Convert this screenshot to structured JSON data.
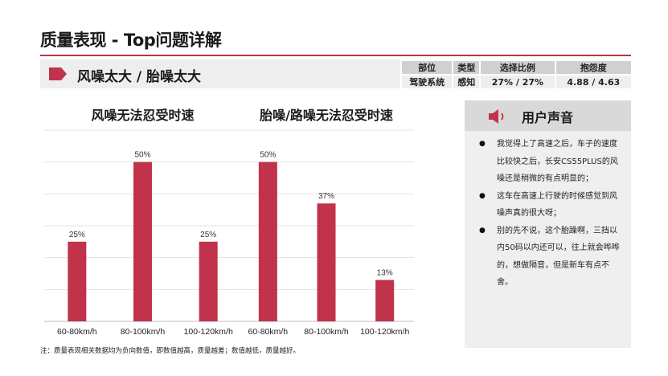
{
  "page": {
    "title": "质量表现 - Top问题详解",
    "footnote": "注：质量表现相关数据均为负向数值，即数值越高，质量越差；数值越低，质量越好。"
  },
  "topic": {
    "title": "风噪太大 / 胎噪太大",
    "arrow_icon": "pentagon-arrow-icon",
    "accent_color": "#c0334a"
  },
  "meta": {
    "headers": [
      "部位",
      "类型",
      "选择比例",
      "抱怨度"
    ],
    "values": [
      "驾驶系统",
      "感知",
      "27% / 27%",
      "4.88 / 4.63"
    ]
  },
  "chart_data": [
    {
      "type": "bar",
      "title": "风噪无法忍受时速",
      "categories": [
        "60-80km/h",
        "80-100km/h",
        "100-120km/h"
      ],
      "values": [
        25,
        50,
        25
      ],
      "value_labels": [
        "25%",
        "50%",
        "25%"
      ],
      "ylim": [
        0,
        60
      ],
      "grid": true,
      "bar_color": "#c0334a"
    },
    {
      "type": "bar",
      "title": "胎噪/路噪无法忍受时速",
      "categories": [
        "60-80km/h",
        "80-100km/h",
        "100-120km/h"
      ],
      "values": [
        50,
        37,
        13
      ],
      "value_labels": [
        "50%",
        "37%",
        "13%"
      ],
      "ylim": [
        0,
        60
      ],
      "grid": true,
      "bar_color": "#c0334a"
    }
  ],
  "voice": {
    "title": "用户声音",
    "icon": "speaker-icon",
    "quotes": [
      "我觉得上了高速之后，车子的速度比较快之后，长安CS55PLUS的风噪还是稍微的有点明显的；",
      "这车在高速上行驶的时候感觉到风噪声真的很大呀；",
      "别的先不说，这个胎躁啊，三挡以内50码以内还可以，往上就会哗哗的，想做隔音，但是新车有点不舍。"
    ]
  }
}
